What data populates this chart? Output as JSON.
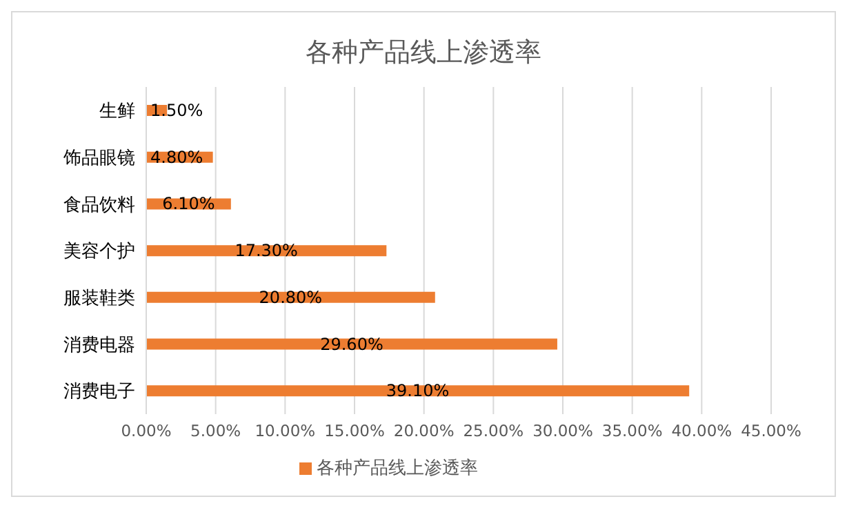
{
  "chart_data": {
    "type": "bar",
    "orientation": "horizontal",
    "title": "各种产品线上渗透率",
    "categories": [
      "生鲜",
      "饰品眼镜",
      "食品饮料",
      "美容个护",
      "服装鞋类",
      "消费电器",
      "消费电子"
    ],
    "series": [
      {
        "name": "各种产品线上渗透率",
        "color": "#ed7d31",
        "values": [
          1.5,
          4.8,
          6.1,
          17.3,
          20.8,
          29.6,
          39.1
        ],
        "value_labels": [
          "1.50%",
          "4.80%",
          "6.10%",
          "17.30%",
          "20.80%",
          "29.60%",
          "39.10%"
        ]
      }
    ],
    "xlim": [
      0,
      45
    ],
    "xticks": [
      {
        "value": 0,
        "label": "0.00%"
      },
      {
        "value": 5,
        "label": "5.00%"
      },
      {
        "value": 10,
        "label": "10.00%"
      },
      {
        "value": 15,
        "label": "15.00%"
      },
      {
        "value": 20,
        "label": "20.00%"
      },
      {
        "value": 25,
        "label": "25.00%"
      },
      {
        "value": 30,
        "label": "30.00%"
      },
      {
        "value": 35,
        "label": "35.00%"
      },
      {
        "value": 40,
        "label": "40.00%"
      },
      {
        "value": 45,
        "label": "45.00%"
      }
    ],
    "grid": "x",
    "legend": "bottom"
  }
}
